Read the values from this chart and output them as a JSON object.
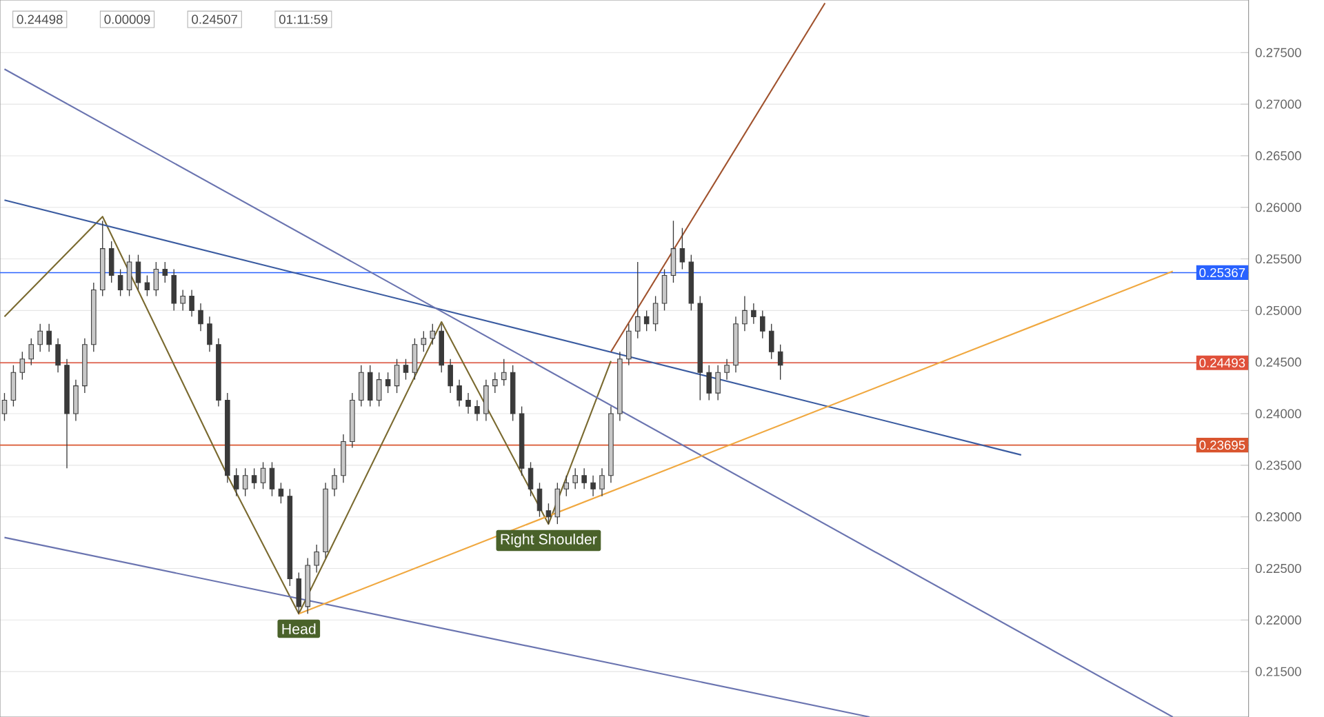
{
  "chart_data": {
    "type": "candlestick",
    "color": "#3a3a3a",
    "categories": [
      null,
      null,
      null,
      null,
      null,
      null,
      null,
      null,
      null,
      null,
      null,
      null,
      null,
      null,
      null,
      null,
      null,
      null,
      null,
      null,
      null,
      null,
      null,
      null,
      null,
      null,
      null,
      null,
      null,
      null,
      null,
      null,
      null,
      null,
      null,
      null,
      null,
      null,
      null,
      null,
      null,
      null,
      null,
      null,
      null,
      null,
      null,
      null,
      null,
      null,
      null,
      null,
      null,
      null,
      null,
      null,
      null,
      null,
      null,
      null,
      null,
      null,
      null,
      null,
      null,
      null,
      null,
      null,
      null,
      null,
      null,
      null,
      null,
      null,
      null,
      null,
      null,
      null,
      null,
      null,
      null,
      null,
      null,
      null,
      null,
      null,
      null,
      null,
      null,
      null,
      null,
      null,
      null,
      null,
      null,
      null,
      null,
      null,
      null,
      null,
      null,
      null,
      null,
      null,
      null,
      null,
      null,
      null,
      null,
      null,
      null,
      null,
      null,
      null,
      null,
      null,
      null,
      null,
      null,
      null,
      null,
      null,
      null,
      null,
      null,
      null,
      null,
      null,
      null,
      null,
      null,
      null,
      null,
      null,
      null,
      null,
      null,
      null,
      null,
      null
    ],
    "ohlc": [
      [
        0.24,
        0.242,
        0.2393,
        0.2413
      ],
      [
        0.2413,
        0.2447,
        0.2407,
        0.244
      ],
      [
        0.244,
        0.246,
        0.2433,
        0.2453
      ],
      [
        0.2453,
        0.2473,
        0.2447,
        0.2467
      ],
      [
        0.2467,
        0.2487,
        0.246,
        0.248
      ],
      [
        0.248,
        0.2487,
        0.246,
        0.2467
      ],
      [
        0.2467,
        0.2473,
        0.244,
        0.2447
      ],
      [
        0.2447,
        0.2453,
        0.2347,
        0.24
      ],
      [
        0.24,
        0.2433,
        0.2393,
        0.2427
      ],
      [
        0.2427,
        0.2473,
        0.242,
        0.2467
      ],
      [
        0.2467,
        0.2527,
        0.246,
        0.252
      ],
      [
        0.252,
        0.2587,
        0.2514,
        0.256
      ],
      [
        0.256,
        0.2567,
        0.2527,
        0.2534
      ],
      [
        0.2534,
        0.254,
        0.2514,
        0.252
      ],
      [
        0.252,
        0.2554,
        0.2514,
        0.2547
      ],
      [
        0.2547,
        0.2554,
        0.252,
        0.2527
      ],
      [
        0.2527,
        0.2534,
        0.2514,
        0.252
      ],
      [
        0.252,
        0.2547,
        0.2514,
        0.254
      ],
      [
        0.254,
        0.2547,
        0.2527,
        0.2534
      ],
      [
        0.2534,
        0.254,
        0.25,
        0.2507
      ],
      [
        0.2507,
        0.252,
        0.25,
        0.2514
      ],
      [
        0.2514,
        0.252,
        0.2494,
        0.25
      ],
      [
        0.25,
        0.2507,
        0.248,
        0.2487
      ],
      [
        0.2487,
        0.2494,
        0.246,
        0.2467
      ],
      [
        0.2467,
        0.2473,
        0.2407,
        0.2413
      ],
      [
        0.2413,
        0.242,
        0.2333,
        0.234
      ],
      [
        0.234,
        0.2347,
        0.232,
        0.2327
      ],
      [
        0.2327,
        0.2347,
        0.232,
        0.234
      ],
      [
        0.234,
        0.2347,
        0.2327,
        0.2333
      ],
      [
        0.2333,
        0.2353,
        0.2327,
        0.2347
      ],
      [
        0.2347,
        0.2353,
        0.232,
        0.2327
      ],
      [
        0.2327,
        0.2333,
        0.2313,
        0.232
      ],
      [
        0.232,
        0.2327,
        0.2233,
        0.224
      ],
      [
        0.224,
        0.2246,
        0.2206,
        0.2213
      ],
      [
        0.2213,
        0.226,
        0.2206,
        0.2253
      ],
      [
        0.2253,
        0.2273,
        0.2246,
        0.2266
      ],
      [
        0.2266,
        0.2333,
        0.226,
        0.2327
      ],
      [
        0.2327,
        0.2347,
        0.232,
        0.234
      ],
      [
        0.234,
        0.238,
        0.2333,
        0.2373
      ],
      [
        0.2373,
        0.242,
        0.2367,
        0.2413
      ],
      [
        0.2413,
        0.2447,
        0.2407,
        0.244
      ],
      [
        0.244,
        0.2447,
        0.2407,
        0.2413
      ],
      [
        0.2413,
        0.244,
        0.2407,
        0.2433
      ],
      [
        0.2433,
        0.244,
        0.242,
        0.2427
      ],
      [
        0.2427,
        0.2453,
        0.242,
        0.2447
      ],
      [
        0.2447,
        0.2453,
        0.2433,
        0.244
      ],
      [
        0.244,
        0.2473,
        0.2433,
        0.2467
      ],
      [
        0.2467,
        0.248,
        0.246,
        0.2473
      ],
      [
        0.2473,
        0.2487,
        0.2467,
        0.248
      ],
      [
        0.248,
        0.2487,
        0.244,
        0.2447
      ],
      [
        0.2447,
        0.2453,
        0.242,
        0.2427
      ],
      [
        0.2427,
        0.2433,
        0.2407,
        0.2413
      ],
      [
        0.2413,
        0.242,
        0.24,
        0.2407
      ],
      [
        0.2407,
        0.2413,
        0.2393,
        0.24
      ],
      [
        0.24,
        0.2433,
        0.2393,
        0.2427
      ],
      [
        0.2427,
        0.244,
        0.242,
        0.2433
      ],
      [
        0.2433,
        0.2453,
        0.2427,
        0.244
      ],
      [
        0.244,
        0.2447,
        0.2393,
        0.24
      ],
      [
        0.24,
        0.2407,
        0.234,
        0.2347
      ],
      [
        0.2347,
        0.2353,
        0.232,
        0.2327
      ],
      [
        0.2327,
        0.2333,
        0.23,
        0.2306
      ],
      [
        0.2306,
        0.2313,
        0.2293,
        0.23
      ],
      [
        0.23,
        0.2333,
        0.2293,
        0.2327
      ],
      [
        0.2327,
        0.234,
        0.232,
        0.2333
      ],
      [
        0.2333,
        0.2347,
        0.2327,
        0.234
      ],
      [
        0.234,
        0.2347,
        0.2327,
        0.2333
      ],
      [
        0.2333,
        0.234,
        0.232,
        0.2327
      ],
      [
        0.2327,
        0.2347,
        0.232,
        0.234
      ],
      [
        0.234,
        0.2407,
        0.2333,
        0.24
      ],
      [
        0.24,
        0.246,
        0.2393,
        0.2453
      ],
      [
        0.2453,
        0.2487,
        0.2447,
        0.248
      ],
      [
        0.248,
        0.2547,
        0.2473,
        0.2494
      ],
      [
        0.2494,
        0.25,
        0.248,
        0.2487
      ],
      [
        0.2487,
        0.2514,
        0.248,
        0.2507
      ],
      [
        0.2507,
        0.254,
        0.25,
        0.2534
      ],
      [
        0.2534,
        0.2587,
        0.2527,
        0.256
      ],
      [
        0.256,
        0.258,
        0.254,
        0.2547
      ],
      [
        0.2547,
        0.2554,
        0.25,
        0.2507
      ],
      [
        0.2507,
        0.2514,
        0.2413,
        0.244
      ],
      [
        0.244,
        0.2447,
        0.2413,
        0.242
      ],
      [
        0.242,
        0.2447,
        0.2413,
        0.244
      ],
      [
        0.244,
        0.2453,
        0.2433,
        0.2447
      ],
      [
        0.2447,
        0.2494,
        0.244,
        0.2487
      ],
      [
        0.2487,
        0.2514,
        0.248,
        0.25
      ],
      [
        0.25,
        0.2507,
        0.2487,
        0.2494
      ],
      [
        0.2494,
        0.25,
        0.2473,
        0.248
      ],
      [
        0.248,
        0.2487,
        0.2453,
        0.246
      ],
      [
        0.246,
        0.2467,
        0.2433,
        0.2447
      ],
      null,
      null,
      null,
      null,
      null,
      null,
      null,
      null,
      null,
      null,
      null,
      null,
      null,
      null,
      null,
      null,
      null,
      null,
      null,
      null,
      null,
      null,
      null,
      null,
      null,
      null,
      null,
      null,
      null,
      null,
      null,
      null,
      null,
      null,
      null,
      null,
      null,
      null,
      null,
      null,
      null,
      null,
      null,
      null,
      null,
      null,
      null,
      null,
      null,
      null,
      null,
      null
    ],
    "series": [
      {
        "type": "line",
        "color": "#7a6a30",
        "values": [
          0.2494,
          null,
          null,
          null,
          null,
          null,
          null,
          null,
          null,
          null,
          null,
          0.2591,
          null,
          null,
          null,
          null,
          null,
          null,
          null,
          null,
          null,
          null,
          null,
          null,
          null,
          0.234,
          null,
          null,
          null,
          null,
          null,
          null,
          null,
          0.2206,
          null,
          null,
          null,
          null,
          null,
          null,
          null,
          null,
          null,
          null,
          null,
          null,
          null,
          null,
          null,
          0.2489,
          null,
          null,
          null,
          null,
          null,
          null,
          null,
          null,
          null,
          null,
          null,
          0.2293,
          null,
          null,
          null,
          null,
          null,
          null,
          0.2451,
          null,
          null,
          null,
          null,
          null,
          null,
          null,
          null,
          null,
          null,
          null,
          null,
          null,
          null,
          null,
          null,
          null,
          null,
          null,
          null,
          null,
          null,
          null,
          null,
          null,
          null,
          null,
          null,
          null,
          null,
          null,
          null,
          null,
          null,
          null,
          null,
          null,
          null,
          null,
          null,
          null,
          null,
          null,
          null,
          null,
          null,
          null,
          null,
          null,
          null,
          null,
          null,
          null,
          null,
          null,
          null,
          null,
          null,
          null,
          null,
          null,
          null,
          null,
          null,
          null,
          null,
          null,
          null,
          null,
          null,
          null
        ]
      },
      {
        "type": "line",
        "color": "#3a5ba0",
        "values": [
          0.2607,
          null,
          null,
          null,
          null,
          null,
          null,
          null,
          null,
          null,
          null,
          null,
          null,
          null,
          null,
          null,
          null,
          null,
          null,
          null,
          null,
          null,
          null,
          null,
          null,
          null,
          null,
          null,
          null,
          null,
          null,
          null,
          null,
          null,
          null,
          null,
          null,
          null,
          null,
          null,
          null,
          null,
          null,
          null,
          null,
          null,
          null,
          null,
          null,
          null,
          null,
          null,
          null,
          null,
          null,
          null,
          null,
          null,
          null,
          null,
          null,
          null,
          null,
          null,
          null,
          null,
          null,
          null,
          null,
          null,
          null,
          null,
          null,
          null,
          null,
          null,
          null,
          null,
          null,
          null,
          null,
          null,
          null,
          null,
          null,
          null,
          null,
          null,
          null,
          null,
          null,
          null,
          null,
          null,
          null,
          null,
          null,
          null,
          null,
          null,
          null,
          null,
          null,
          null,
          null,
          null,
          null,
          null,
          null,
          null,
          null,
          null,
          null,
          null,
          0.236,
          null,
          null,
          null,
          null,
          null,
          null,
          null,
          null,
          null,
          null,
          null,
          null,
          null,
          null,
          null,
          null,
          null,
          null,
          null,
          null,
          null,
          null,
          null,
          null,
          null
        ]
      },
      {
        "type": "line",
        "color": "#6a74b0",
        "values": [
          0.2734,
          null,
          null,
          null,
          null,
          null,
          null,
          null,
          null,
          null,
          null,
          null,
          null,
          null,
          null,
          null,
          null,
          null,
          null,
          null,
          null,
          null,
          null,
          null,
          null,
          null,
          null,
          null,
          null,
          null,
          null,
          null,
          null,
          null,
          null,
          null,
          null,
          null,
          null,
          null,
          null,
          null,
          null,
          null,
          null,
          null,
          null,
          null,
          null,
          null,
          null,
          null,
          null,
          null,
          null,
          null,
          null,
          null,
          null,
          null,
          null,
          null,
          null,
          null,
          null,
          null,
          null,
          null,
          null,
          null,
          null,
          null,
          null,
          null,
          null,
          null,
          null,
          null,
          null,
          null,
          null,
          null,
          null,
          null,
          null,
          null,
          null,
          null,
          null,
          null,
          null,
          null,
          null,
          null,
          null,
          null,
          null,
          null,
          null,
          null,
          null,
          null,
          null,
          null,
          null,
          null,
          null,
          null,
          null,
          null,
          null,
          null,
          null,
          null,
          null,
          null,
          null,
          null,
          null,
          null,
          null,
          null,
          null,
          null,
          null,
          null,
          null,
          null,
          null,
          null,
          null,
          0.2106,
          null,
          null,
          null,
          null,
          null,
          null,
          null,
          null
        ]
      },
      {
        "type": "line",
        "color": "#6a74b0",
        "values": [
          0.228,
          null,
          null,
          null,
          null,
          null,
          null,
          null,
          null,
          null,
          null,
          null,
          null,
          null,
          null,
          null,
          null,
          null,
          null,
          null,
          null,
          null,
          null,
          null,
          null,
          null,
          null,
          null,
          null,
          null,
          null,
          null,
          null,
          null,
          null,
          null,
          null,
          null,
          null,
          null,
          null,
          null,
          null,
          null,
          null,
          null,
          null,
          null,
          null,
          null,
          null,
          null,
          null,
          null,
          null,
          null,
          null,
          null,
          null,
          null,
          null,
          null,
          null,
          null,
          null,
          null,
          null,
          null,
          null,
          null,
          null,
          null,
          null,
          null,
          null,
          null,
          null,
          null,
          null,
          null,
          null,
          null,
          null,
          null,
          null,
          null,
          null,
          null,
          null,
          null,
          null,
          null,
          null,
          null,
          null,
          null,
          null,
          0.2106,
          null,
          null,
          null,
          null,
          null,
          null,
          null,
          null,
          null,
          null,
          null,
          null,
          null,
          null,
          null,
          null,
          null,
          null,
          null,
          null,
          null,
          null,
          null,
          null,
          null,
          null,
          null,
          null,
          null,
          null,
          null,
          null,
          null,
          null,
          null,
          null,
          null,
          null,
          null,
          null,
          null,
          null
        ]
      },
      {
        "type": "line",
        "color": "#f0a840",
        "values": [
          null,
          null,
          null,
          null,
          null,
          null,
          null,
          null,
          null,
          null,
          null,
          null,
          null,
          null,
          null,
          null,
          null,
          null,
          null,
          null,
          null,
          null,
          null,
          null,
          null,
          null,
          null,
          null,
          null,
          null,
          null,
          null,
          null,
          0.2206,
          null,
          null,
          null,
          null,
          null,
          null,
          null,
          null,
          null,
          null,
          null,
          null,
          null,
          null,
          null,
          null,
          null,
          null,
          null,
          null,
          null,
          null,
          null,
          null,
          null,
          null,
          null,
          null,
          null,
          null,
          null,
          null,
          null,
          null,
          null,
          null,
          null,
          null,
          null,
          null,
          null,
          null,
          null,
          null,
          null,
          null,
          null,
          null,
          null,
          null,
          null,
          null,
          null,
          null,
          null,
          null,
          null,
          null,
          null,
          null,
          null,
          null,
          null,
          null,
          null,
          null,
          null,
          null,
          null,
          null,
          null,
          null,
          null,
          null,
          null,
          null,
          null,
          null,
          null,
          null,
          null,
          null,
          null,
          null,
          null,
          null,
          null,
          null,
          null,
          null,
          null,
          null,
          null,
          null,
          null,
          null,
          null,
          0.2538,
          null,
          null,
          null,
          null,
          null,
          null,
          null,
          null
        ]
      },
      {
        "type": "line",
        "color": "#a0522d",
        "values": [
          null,
          null,
          null,
          null,
          null,
          null,
          null,
          null,
          null,
          null,
          null,
          null,
          null,
          null,
          null,
          null,
          null,
          null,
          null,
          null,
          null,
          null,
          null,
          null,
          null,
          null,
          null,
          null,
          null,
          null,
          null,
          null,
          null,
          null,
          null,
          null,
          null,
          null,
          null,
          null,
          null,
          null,
          null,
          null,
          null,
          null,
          null,
          null,
          null,
          null,
          null,
          null,
          null,
          null,
          null,
          null,
          null,
          null,
          null,
          null,
          null,
          null,
          null,
          null,
          null,
          null,
          null,
          null,
          0.246,
          null,
          null,
          null,
          null,
          null,
          null,
          null,
          null,
          null,
          null,
          null,
          null,
          null,
          null,
          null,
          null,
          null,
          null,
          null,
          null,
          null,
          null,
          null,
          0.2798,
          null,
          null,
          null,
          null,
          null,
          null,
          null,
          null,
          null,
          null,
          null,
          null,
          null,
          null,
          null,
          null,
          null,
          null,
          null,
          null,
          null,
          null,
          null,
          null,
          null,
          null,
          null,
          null,
          null,
          null,
          null,
          null,
          null,
          null,
          null,
          null,
          null,
          null,
          null,
          null,
          null,
          null,
          null,
          null,
          null,
          null,
          null
        ]
      }
    ],
    "ylim": [
      0.2106,
      0.2801
    ],
    "yticks": [
      {
        "value": 0.215,
        "label": "0.21500"
      },
      {
        "value": 0.22,
        "label": "0.22000"
      },
      {
        "value": 0.225,
        "label": "0.22500"
      },
      {
        "value": 0.23,
        "label": "0.23000"
      },
      {
        "value": 0.235,
        "label": "0.23500"
      },
      {
        "value": 0.24,
        "label": "0.24000"
      },
      {
        "value": 0.245,
        "label": "0.24500"
      },
      {
        "value": 0.25,
        "label": "0.25000"
      },
      {
        "value": 0.255,
        "label": "0.25500"
      },
      {
        "value": 0.26,
        "label": "0.26000"
      },
      {
        "value": 0.265,
        "label": "0.26500"
      },
      {
        "value": 0.27,
        "label": "0.27000"
      },
      {
        "value": 0.275,
        "label": "0.27500"
      }
    ],
    "tick_labels": "y",
    "grid": "y",
    "ref_lines": [
      {
        "axis": "y",
        "value": 0.25367,
        "label": "0.25367",
        "color": "#2962ff"
      },
      {
        "axis": "y",
        "value": 0.24493,
        "label": "0.24493",
        "color": "#e0503a"
      },
      {
        "axis": "y",
        "value": 0.23695,
        "label": "0.23695",
        "color": "#d9552f"
      }
    ],
    "annotations": [
      "0.24498",
      "0.00009",
      "0.24507",
      "01:11:59",
      {
        "text": "Head",
        "y": 0.2206
      },
      {
        "text": "Right Shoulder",
        "y": 0.2293
      }
    ]
  }
}
